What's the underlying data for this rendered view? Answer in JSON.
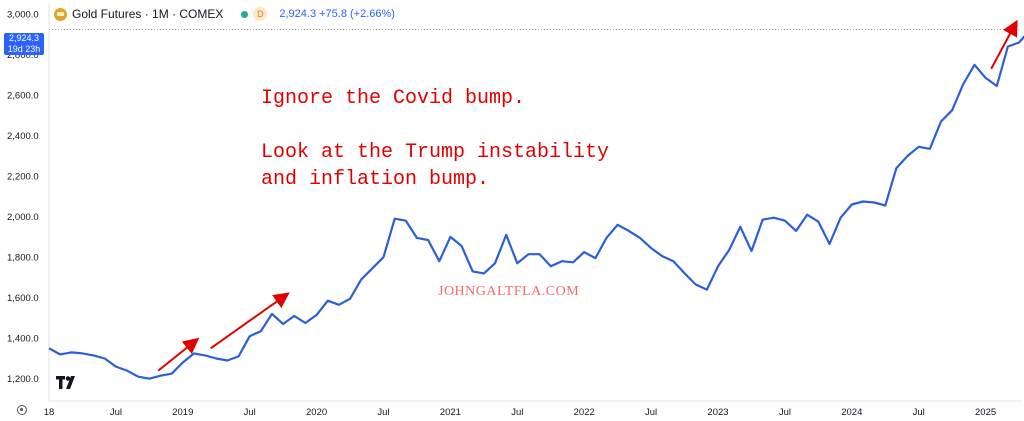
{
  "header": {
    "title": "Gold Futures · 1M · COMEX",
    "badge": "D",
    "price": "2,924.3 +75.8 (+2.66%)"
  },
  "price_tag": {
    "price": "2,924.3",
    "countdown": "19d 23h"
  },
  "annotations": {
    "line1": "Ignore the Covid bump.",
    "line2": "Look at the Trump instability",
    "line3": "and inflation bump.",
    "watermark": "JOHNGALTFLA.COM"
  },
  "colors": {
    "line": "#2b5fd9",
    "arrow": "#e00000",
    "price_tag": "#2962ff",
    "grid_text": "#131722"
  },
  "icons": {
    "logo": "tradingview-logo",
    "settings": "settings-icon",
    "gold": "gold-bar-icon"
  },
  "chart_data": {
    "type": "line",
    "series": [
      {
        "values": [
          1350,
          1320,
          1330,
          1325,
          1315,
          1300,
          1260,
          1240,
          1210,
          1200,
          1215,
          1225,
          1280,
          1325,
          1315,
          1300,
          1290,
          1310,
          1410,
          1435,
          1520,
          1470,
          1510,
          1475,
          1515,
          1585,
          1565,
          1595,
          1690,
          1745,
          1800,
          1990,
          1980,
          1895,
          1885,
          1780,
          1900,
          1855,
          1730,
          1720,
          1770,
          1910,
          1770,
          1815,
          1815,
          1755,
          1780,
          1775,
          1825,
          1795,
          1895,
          1960,
          1930,
          1895,
          1845,
          1805,
          1780,
          1720,
          1665,
          1640,
          1755,
          1835,
          1950,
          1830,
          1985,
          1995,
          1980,
          1930,
          2010,
          1975,
          1865,
          1995,
          2060,
          2075,
          2070,
          2055,
          2240,
          2300,
          2345,
          2335,
          2470,
          2525,
          2655,
          2750,
          2685,
          2645,
          2840,
          2860,
          2924.3
        ]
      }
    ],
    "x_start": "2018-01",
    "x_step": "1 month",
    "xticks": [
      {
        "label": "18",
        "index": 0
      },
      {
        "label": "Jul",
        "index": 6
      },
      {
        "label": "2019",
        "index": 12
      },
      {
        "label": "Jul",
        "index": 18
      },
      {
        "label": "2020",
        "index": 24
      },
      {
        "label": "Jul",
        "index": 30
      },
      {
        "label": "2021",
        "index": 36
      },
      {
        "label": "Jul",
        "index": 42
      },
      {
        "label": "2022",
        "index": 48
      },
      {
        "label": "Jul",
        "index": 54
      },
      {
        "label": "2023",
        "index": 60
      },
      {
        "label": "Jul",
        "index": 66
      },
      {
        "label": "2024",
        "index": 72
      },
      {
        "label": "Jul",
        "index": 78
      },
      {
        "label": "2025",
        "index": 84
      }
    ],
    "yticks": [
      "1,200.0",
      "1,400.0",
      "1,600.0",
      "1,800.0",
      "2,000.0",
      "2,200.0",
      "2,400.0",
      "2,600.0",
      "2,800.0",
      "3,000.0"
    ],
    "ytick_values": [
      1200,
      1400,
      1600,
      1800,
      2000,
      2200,
      2400,
      2600,
      2800,
      3000
    ],
    "ylim": [
      1090,
      3050
    ],
    "last_value": 2924.3,
    "arrows": [
      {
        "from": [
          9.8,
          1240
        ],
        "to": [
          13.2,
          1390
        ]
      },
      {
        "from": [
          14.5,
          1350
        ],
        "to": [
          21.3,
          1615
        ]
      },
      {
        "from": [
          84.5,
          2730
        ],
        "to": [
          86.7,
          2955
        ]
      }
    ]
  }
}
